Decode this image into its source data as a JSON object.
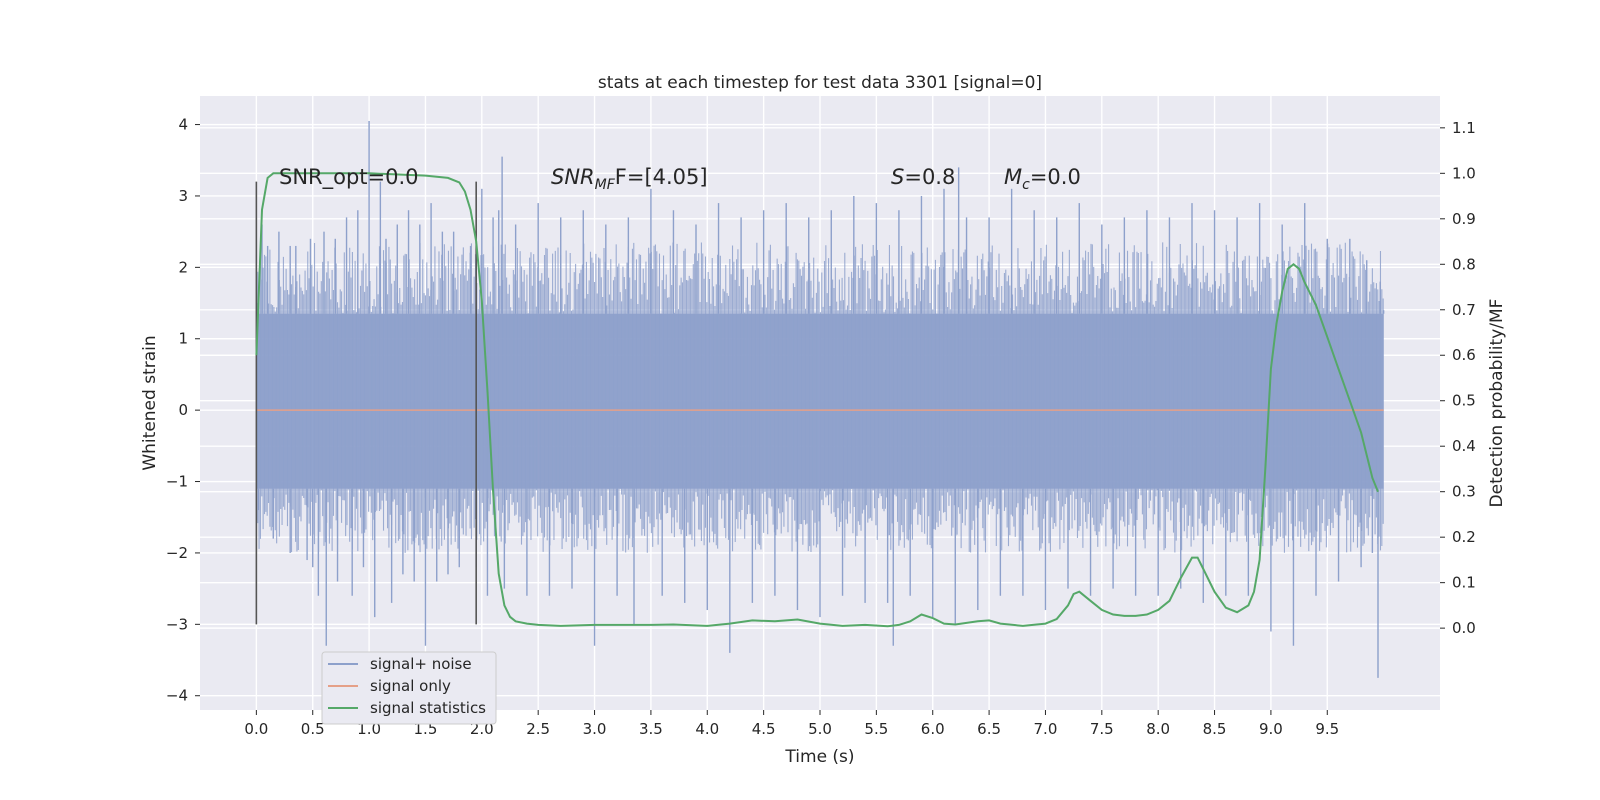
{
  "chart_data": {
    "type": "line",
    "title": "stats at each timestep for test data 3301 [signal=0]",
    "xlabel": "Time (s)",
    "ylabel": "Whitened strain",
    "ylabel_right": "Detection probability/MF",
    "xlim": [
      -0.5,
      10.5
    ],
    "ylim": [
      -4.2,
      4.4
    ],
    "ylim_right": [
      -0.18,
      1.17
    ],
    "xticks": [
      0.0,
      0.5,
      1.0,
      1.5,
      2.0,
      2.5,
      3.0,
      3.5,
      4.0,
      4.5,
      5.0,
      5.5,
      6.0,
      6.5,
      7.0,
      7.5,
      8.0,
      8.5,
      9.0,
      9.5
    ],
    "xtick_labels": [
      "0.0",
      "0.5",
      "1.0",
      "1.5",
      "2.0",
      "2.5",
      "3.0",
      "3.5",
      "4.0",
      "4.5",
      "5.0",
      "5.5",
      "6.0",
      "6.5",
      "7.0",
      "7.5",
      "8.0",
      "8.5",
      "9.0",
      "9.5"
    ],
    "yticks": [
      4,
      3,
      2,
      1,
      0,
      -1,
      -2,
      -3,
      -4
    ],
    "ytick_labels": [
      "4",
      "3",
      "2",
      "1",
      "0",
      "−1",
      "−2",
      "−3",
      "−4"
    ],
    "yticks_right": [
      1.1,
      1.0,
      0.9,
      0.8,
      0.7,
      0.6,
      0.5,
      0.4,
      0.3,
      0.2,
      0.1,
      0.0
    ],
    "ytick_labels_right": [
      "1.1",
      "1.0",
      "0.9",
      "0.8",
      "0.7",
      "0.6",
      "0.5",
      "0.4",
      "0.3",
      "0.2",
      "0.1",
      "0.0"
    ],
    "grid": true,
    "legend_position": "lower-left",
    "series": [
      {
        "name": "signal+ noise",
        "color": "#8da0cb",
        "axis": "left",
        "x_range": [
          0.0,
          10.0
        ],
        "envelope_upper": 1.35,
        "envelope_lower": -1.1,
        "spikes": [
          [
            0.01,
            1.5
          ],
          [
            0.02,
            -1.4
          ],
          [
            0.05,
            2.6
          ],
          [
            0.1,
            2.3
          ],
          [
            0.15,
            -1.8
          ],
          [
            0.2,
            2.5
          ],
          [
            0.3,
            -2.0
          ],
          [
            0.3,
            2.3
          ],
          [
            0.35,
            2.3
          ],
          [
            0.45,
            -2.1
          ],
          [
            0.48,
            2.4
          ],
          [
            0.5,
            -2.2
          ],
          [
            0.55,
            -2.6
          ],
          [
            0.6,
            2.5
          ],
          [
            0.62,
            -3.3
          ],
          [
            0.7,
            2.4
          ],
          [
            0.72,
            -2.4
          ],
          [
            0.8,
            2.7
          ],
          [
            0.85,
            -2.6
          ],
          [
            0.9,
            2.8
          ],
          [
            0.95,
            -2.2
          ],
          [
            1.0,
            4.05
          ],
          [
            1.05,
            -2.9
          ],
          [
            1.1,
            3.2
          ],
          [
            1.15,
            2.4
          ],
          [
            1.2,
            -2.7
          ],
          [
            1.25,
            2.6
          ],
          [
            1.3,
            -2.3
          ],
          [
            1.35,
            2.8
          ],
          [
            1.4,
            -2.4
          ],
          [
            1.45,
            2.6
          ],
          [
            1.5,
            -3.3
          ],
          [
            1.55,
            2.9
          ],
          [
            1.6,
            -2.4
          ],
          [
            1.65,
            2.5
          ],
          [
            1.7,
            -2.3
          ],
          [
            1.75,
            2.5
          ],
          [
            1.8,
            -2.2
          ],
          [
            1.9,
            2.3
          ],
          [
            1.95,
            -2.2
          ],
          [
            2.0,
            3.1
          ],
          [
            2.05,
            -2.6
          ],
          [
            2.1,
            2.7
          ],
          [
            2.15,
            2.8
          ],
          [
            2.18,
            3.55
          ],
          [
            2.2,
            -2.5
          ],
          [
            2.3,
            2.6
          ],
          [
            2.4,
            -2.6
          ],
          [
            2.5,
            2.9
          ],
          [
            2.6,
            -2.6
          ],
          [
            2.7,
            2.7
          ],
          [
            2.8,
            -2.5
          ],
          [
            2.9,
            2.8
          ],
          [
            3.0,
            -3.3
          ],
          [
            3.1,
            2.6
          ],
          [
            3.2,
            -2.6
          ],
          [
            3.3,
            2.7
          ],
          [
            3.35,
            -3.0
          ],
          [
            3.5,
            3.1
          ],
          [
            3.6,
            -2.6
          ],
          [
            3.7,
            2.8
          ],
          [
            3.8,
            -2.7
          ],
          [
            3.9,
            2.6
          ],
          [
            4.0,
            -2.8
          ],
          [
            4.1,
            2.9
          ],
          [
            4.2,
            -3.4
          ],
          [
            4.3,
            2.7
          ],
          [
            4.4,
            -2.7
          ],
          [
            4.5,
            2.8
          ],
          [
            4.6,
            -2.6
          ],
          [
            4.7,
            2.9
          ],
          [
            4.8,
            -2.8
          ],
          [
            4.9,
            2.7
          ],
          [
            5.0,
            -2.9
          ],
          [
            5.1,
            2.8
          ],
          [
            5.2,
            -2.6
          ],
          [
            5.3,
            3.0
          ],
          [
            5.4,
            -2.7
          ],
          [
            5.5,
            2.9
          ],
          [
            5.6,
            -2.7
          ],
          [
            5.65,
            -3.3
          ],
          [
            5.7,
            2.8
          ],
          [
            5.8,
            -2.6
          ],
          [
            5.9,
            3.0
          ],
          [
            6.0,
            -2.9
          ],
          [
            6.1,
            3.1
          ],
          [
            6.2,
            -3.0
          ],
          [
            6.23,
            3.4
          ],
          [
            6.3,
            2.7
          ],
          [
            6.4,
            -2.8
          ],
          [
            6.5,
            2.7
          ],
          [
            6.6,
            -2.6
          ],
          [
            6.7,
            3.1
          ],
          [
            6.8,
            -2.6
          ],
          [
            6.9,
            2.8
          ],
          [
            7.0,
            -2.8
          ],
          [
            7.1,
            2.7
          ],
          [
            7.2,
            -2.5
          ],
          [
            7.3,
            2.9
          ],
          [
            7.4,
            -2.6
          ],
          [
            7.5,
            2.6
          ],
          [
            7.6,
            -2.5
          ],
          [
            7.7,
            2.7
          ],
          [
            7.8,
            -2.6
          ],
          [
            7.9,
            2.8
          ],
          [
            8.0,
            -2.6
          ],
          [
            8.1,
            2.7
          ],
          [
            8.2,
            -2.5
          ],
          [
            8.3,
            2.9
          ],
          [
            8.4,
            -2.7
          ],
          [
            8.5,
            2.8
          ],
          [
            8.6,
            -2.6
          ],
          [
            8.7,
            2.7
          ],
          [
            8.8,
            -2.6
          ],
          [
            8.9,
            2.9
          ],
          [
            9.0,
            -3.1
          ],
          [
            9.1,
            2.6
          ],
          [
            9.2,
            -3.3
          ],
          [
            9.3,
            2.9
          ],
          [
            9.4,
            -2.6
          ],
          [
            9.5,
            2.4
          ],
          [
            9.6,
            -2.4
          ],
          [
            9.7,
            2.4
          ],
          [
            9.8,
            -2.2
          ],
          [
            9.85,
            2.1
          ],
          [
            9.9,
            -2.0
          ],
          [
            9.95,
            -3.75
          ],
          [
            9.97,
            1.8
          ],
          [
            10.0,
            1.4
          ]
        ]
      },
      {
        "name": "signal only",
        "color": "#e5a088",
        "axis": "left",
        "x": [
          0.0,
          10.0
        ],
        "y": [
          0.0,
          0.0
        ]
      },
      {
        "name": "signal statistics",
        "color": "#55a868",
        "axis": "right",
        "x": [
          0.0,
          0.05,
          0.1,
          0.15,
          0.2,
          0.3,
          0.5,
          1.0,
          1.5,
          1.7,
          1.8,
          1.85,
          1.9,
          1.95,
          2.0,
          2.05,
          2.1,
          2.15,
          2.2,
          2.25,
          2.3,
          2.4,
          2.5,
          2.7,
          3.0,
          3.5,
          3.7,
          4.0,
          4.2,
          4.4,
          4.6,
          4.8,
          5.0,
          5.2,
          5.4,
          5.6,
          5.7,
          5.8,
          5.9,
          6.0,
          6.1,
          6.2,
          6.4,
          6.5,
          6.6,
          6.8,
          7.0,
          7.1,
          7.2,
          7.25,
          7.3,
          7.4,
          7.5,
          7.6,
          7.7,
          7.8,
          7.9,
          8.0,
          8.1,
          8.2,
          8.3,
          8.35,
          8.4,
          8.5,
          8.6,
          8.7,
          8.8,
          8.85,
          8.9,
          8.95,
          9.0,
          9.05,
          9.1,
          9.15,
          9.2,
          9.25,
          9.3,
          9.4,
          9.5,
          9.6,
          9.7,
          9.8,
          9.9,
          9.95
        ],
        "y": [
          0.6,
          0.92,
          0.99,
          1.0,
          1.0,
          1.0,
          1.0,
          1.0,
          0.995,
          0.99,
          0.98,
          0.96,
          0.92,
          0.85,
          0.72,
          0.52,
          0.3,
          0.12,
          0.05,
          0.025,
          0.015,
          0.01,
          0.007,
          0.005,
          0.007,
          0.007,
          0.008,
          0.005,
          0.01,
          0.017,
          0.015,
          0.019,
          0.01,
          0.005,
          0.007,
          0.004,
          0.007,
          0.015,
          0.03,
          0.022,
          0.01,
          0.008,
          0.015,
          0.017,
          0.01,
          0.005,
          0.01,
          0.02,
          0.05,
          0.075,
          0.08,
          0.06,
          0.04,
          0.03,
          0.027,
          0.027,
          0.03,
          0.04,
          0.06,
          0.11,
          0.155,
          0.155,
          0.13,
          0.08,
          0.045,
          0.035,
          0.05,
          0.08,
          0.15,
          0.35,
          0.57,
          0.67,
          0.74,
          0.79,
          0.8,
          0.79,
          0.76,
          0.71,
          0.64,
          0.57,
          0.5,
          0.43,
          0.33,
          0.3
        ]
      }
    ],
    "vertical_markers": [
      {
        "x": 0.0,
        "y_from": -3.0,
        "y_to": 3.2,
        "color": "#555555"
      },
      {
        "x": 1.95,
        "y_from": -3.0,
        "y_to": 3.2,
        "color": "#555555"
      }
    ],
    "annotations": [
      {
        "text": "SNR_opt=0.0",
        "x": 0.2,
        "y": 3.2
      },
      {
        "label": "SNR",
        "sub": "MF",
        "text": "F=[4.05]",
        "x": 2.6,
        "y": 3.2
      },
      {
        "label": "S",
        "text": "=0.8",
        "x": 5.6,
        "y": 3.2
      },
      {
        "label": "M",
        "sub": "c",
        "text": "=0.0",
        "x": 6.6,
        "y": 3.2
      }
    ]
  }
}
